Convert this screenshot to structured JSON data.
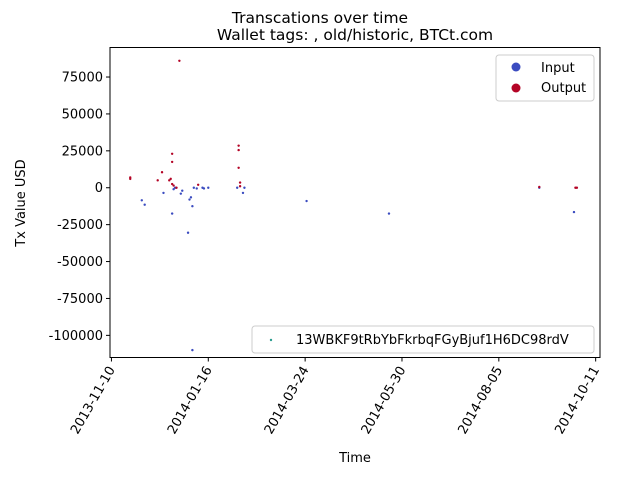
{
  "chart_data": {
    "type": "scatter",
    "title": "Transcations over time",
    "subtitle": "Wallet tags: , old/historic, BTCt.com",
    "xlabel": "Time",
    "ylabel": "Tx Value USD",
    "xlim": [
      "2013-11-09",
      "2014-10-14"
    ],
    "ylim": [
      -115000,
      95000
    ],
    "x_ticks": [
      "2013-11-10",
      "2014-01-16",
      "2014-03-24",
      "2014-05-30",
      "2014-08-05",
      "2014-10-11"
    ],
    "y_ticks": [
      -100000,
      -75000,
      -50000,
      -25000,
      0,
      25000,
      50000,
      75000
    ],
    "grid": false,
    "legend_top": {
      "placement": "top-right",
      "entries": [
        {
          "label": "Input",
          "color": "#3b4cc0"
        },
        {
          "label": "Output",
          "color": "#b40426"
        }
      ]
    },
    "legend_bottom": {
      "placement": "bottom-right",
      "entries": [
        {
          "label": "13WBKF9tRbYbFkrbqFGyBjuf1H6DC98rdV",
          "color": "#2a9d8f"
        }
      ]
    },
    "series": [
      {
        "name": "Input",
        "color": "#3b4cc0",
        "points": [
          {
            "x": "2013-12-01",
            "y": -8500
          },
          {
            "x": "2013-12-03",
            "y": -11500
          },
          {
            "x": "2013-12-16",
            "y": -3500
          },
          {
            "x": "2013-12-22",
            "y": -17500
          },
          {
            "x": "2013-12-23",
            "y": -1000
          },
          {
            "x": "2013-12-24",
            "y": 0
          },
          {
            "x": "2013-12-28",
            "y": -4000
          },
          {
            "x": "2013-12-29",
            "y": -2000
          },
          {
            "x": "2014-01-02",
            "y": -30500
          },
          {
            "x": "2014-01-03",
            "y": -8000
          },
          {
            "x": "2014-01-04",
            "y": -6500
          },
          {
            "x": "2014-01-05",
            "y": -12500
          },
          {
            "x": "2014-01-05",
            "y": -110000
          },
          {
            "x": "2014-01-06",
            "y": 0
          },
          {
            "x": "2014-01-08",
            "y": -500
          },
          {
            "x": "2014-01-12",
            "y": 0
          },
          {
            "x": "2014-01-13",
            "y": -500
          },
          {
            "x": "2014-01-16",
            "y": 0
          },
          {
            "x": "2014-02-05",
            "y": 0
          },
          {
            "x": "2014-02-09",
            "y": -3500
          },
          {
            "x": "2014-02-10",
            "y": 0
          },
          {
            "x": "2014-03-25",
            "y": -9000
          },
          {
            "x": "2014-05-21",
            "y": -17500
          },
          {
            "x": "2014-09-02",
            "y": 0
          },
          {
            "x": "2014-09-26",
            "y": -16500
          }
        ]
      },
      {
        "name": "Output",
        "color": "#b40426",
        "points": [
          {
            "x": "2013-11-23",
            "y": 6000
          },
          {
            "x": "2013-11-23",
            "y": 7000
          },
          {
            "x": "2013-12-12",
            "y": 5000
          },
          {
            "x": "2013-12-15",
            "y": 10500
          },
          {
            "x": "2013-12-20",
            "y": 5000
          },
          {
            "x": "2013-12-21",
            "y": 6000
          },
          {
            "x": "2013-12-22",
            "y": 23000
          },
          {
            "x": "2013-12-22",
            "y": 17500
          },
          {
            "x": "2013-12-22",
            "y": 2500
          },
          {
            "x": "2013-12-23",
            "y": 1500
          },
          {
            "x": "2013-12-25",
            "y": 0
          },
          {
            "x": "2013-12-27",
            "y": 86000
          },
          {
            "x": "2014-01-09",
            "y": 2000
          },
          {
            "x": "2014-02-06",
            "y": 28500
          },
          {
            "x": "2014-02-06",
            "y": 25500
          },
          {
            "x": "2014-02-06",
            "y": 13500
          },
          {
            "x": "2014-02-07",
            "y": 3500
          },
          {
            "x": "2014-02-07",
            "y": 1000
          },
          {
            "x": "2014-09-02",
            "y": 500
          },
          {
            "x": "2014-09-27",
            "y": 0
          },
          {
            "x": "2014-09-28",
            "y": 0
          }
        ]
      }
    ]
  }
}
